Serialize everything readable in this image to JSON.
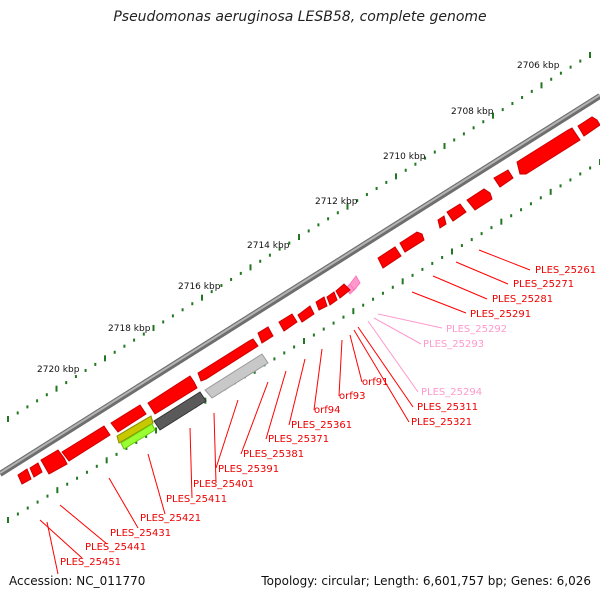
{
  "title": "Pseudomonas aeruginosa LESB58, complete genome",
  "footer": {
    "accession": "Accession: NC_011770",
    "topology": "Topology: circular; Length: 6,601,757 bp; Genes: 6,026"
  },
  "colors": {
    "backbone": "#8c8c8c",
    "gene": "#ff0000",
    "pseudo": "#ff99cc",
    "tick": "#227722",
    "label_line": "#ff0000",
    "label_line_pseudo": "#ff99cc"
  },
  "ticks": [
    {
      "label": "2706 kbp"
    },
    {
      "label": "2708 kbp"
    },
    {
      "label": "2710 kbp"
    },
    {
      "label": "2712 kbp"
    },
    {
      "label": "2714 kbp"
    },
    {
      "label": "2716 kbp"
    },
    {
      "label": "2718 kbp"
    },
    {
      "label": "2720 kbp"
    }
  ],
  "gene_labels": [
    {
      "text": "PLES_25261",
      "pseudo": false
    },
    {
      "text": "PLES_25271",
      "pseudo": false
    },
    {
      "text": "PLES_25281",
      "pseudo": false
    },
    {
      "text": "PLES_25291",
      "pseudo": false
    },
    {
      "text": "PLES_25292",
      "pseudo": true
    },
    {
      "text": "PLES_25293",
      "pseudo": true
    },
    {
      "text": "orf91",
      "pseudo": false
    },
    {
      "text": "PLES_25294",
      "pseudo": true
    },
    {
      "text": "orf93",
      "pseudo": false
    },
    {
      "text": "PLES_25311",
      "pseudo": false
    },
    {
      "text": "orf94",
      "pseudo": false
    },
    {
      "text": "PLES_25321",
      "pseudo": false
    },
    {
      "text": "PLES_25361",
      "pseudo": false
    },
    {
      "text": "PLES_25371",
      "pseudo": false
    },
    {
      "text": "PLES_25381",
      "pseudo": false
    },
    {
      "text": "PLES_25391",
      "pseudo": false
    },
    {
      "text": "PLES_25401",
      "pseudo": false
    },
    {
      "text": "PLES_25411",
      "pseudo": false
    },
    {
      "text": "PLES_25421",
      "pseudo": false
    },
    {
      "text": "PLES_25431",
      "pseudo": false
    },
    {
      "text": "PLES_25441",
      "pseudo": false
    },
    {
      "text": "PLES_25451",
      "pseudo": false
    }
  ]
}
